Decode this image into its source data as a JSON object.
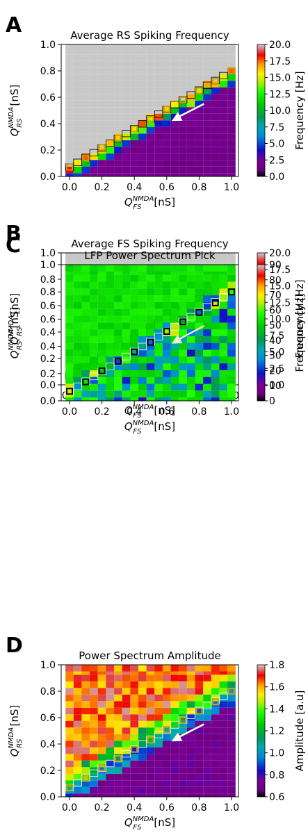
{
  "panels": [
    {
      "letter": "A",
      "title": "Average RS Spiking Frequency",
      "colorbar": {
        "label": "Frequency [Hz]",
        "ticks": [
          "20.0",
          "17.5",
          "15.0",
          "12.5",
          "10.0",
          "7.5",
          "5.0",
          "2.5",
          "0.0"
        ],
        "palette": "nipy"
      },
      "marker_color": "#c8a000",
      "arrow_color": "#ffffff"
    },
    {
      "letter": "B",
      "title": "Average FS Spiking Frequency",
      "colorbar": {
        "label": "Frequency [Hz]",
        "ticks": [
          "20.0",
          "17.5",
          "15.0",
          "12.5",
          "10.0",
          "7.5",
          "5.0",
          "2.5",
          "0.0"
        ],
        "palette": "nipy"
      },
      "marker_color": "#000000",
      "arrow_color": "#000000"
    },
    {
      "letter": "C",
      "title": "LFP Power Spectrum Pick",
      "colorbar": {
        "label": "Frequency [Hz]",
        "ticks": [
          "90",
          "80",
          "70",
          "60",
          "50",
          "40",
          "30",
          "20",
          "10",
          "0"
        ],
        "palette": "nipy"
      },
      "marker_color": "#000000",
      "arrow_color": "#f0f0c8"
    },
    {
      "letter": "D",
      "title": "Power Spectrum Amplitude",
      "colorbar": {
        "label": "Amplitude [a.u]",
        "ticks": [
          "1.8",
          "1.6",
          "1.4",
          "1.2",
          "1.0",
          "0.8",
          "0.6"
        ],
        "palette": "nipy"
      },
      "marker_color": "#c8a000",
      "arrow_color": "#ffffff"
    }
  ],
  "axes": {
    "xticks": [
      "0.0",
      "0.2",
      "0.4",
      "0.6",
      "0.8",
      "1.0"
    ],
    "yticks": [
      "1.0",
      "0.8",
      "0.6",
      "0.4",
      "0.2",
      "0.0"
    ],
    "xlabel": "Q_FS^NMDA [nS]",
    "ylabel": "Q_RS^NMDA [nS]"
  },
  "chart_data": [
    {
      "type": "heatmap",
      "title": "Average RS Spiking Frequency",
      "xlabel": "Q_FS^NMDA [nS]",
      "ylabel": "Q_RS^NMDA [nS]",
      "xlim": [
        0,
        1
      ],
      "ylim": [
        0,
        1
      ],
      "grid_step": 0.05,
      "colorbar_label": "Frequency [Hz]",
      "colorbar_range": [
        0,
        20
      ],
      "description": "Grey (no data) above the diagonal boundary; hot colors along boundary; purple/dark region below",
      "markers_x": [
        0.0,
        0.1,
        0.2,
        0.3,
        0.4,
        0.5,
        0.6,
        0.7,
        0.8,
        0.9,
        1.0
      ],
      "markers_y": [
        0.07,
        0.14,
        0.22,
        0.29,
        0.36,
        0.43,
        0.51,
        0.58,
        0.65,
        0.72,
        0.8
      ]
    },
    {
      "type": "heatmap",
      "title": "Average FS Spiking Frequency",
      "xlabel": "Q_FS^NMDA [nS]",
      "ylabel": "Q_RS^NMDA [nS]",
      "xlim": [
        0,
        1
      ],
      "ylim": [
        0,
        1
      ],
      "grid_step": 0.05,
      "colorbar_label": "Frequency [Hz]",
      "colorbar_range": [
        0,
        20
      ],
      "markers_x": [
        0.0,
        0.1,
        0.2,
        0.3,
        0.4,
        0.5,
        0.6,
        0.7,
        0.8,
        0.9,
        1.0
      ],
      "markers_y": [
        0.07,
        0.14,
        0.22,
        0.29,
        0.36,
        0.43,
        0.51,
        0.58,
        0.65,
        0.72,
        0.8
      ]
    },
    {
      "type": "heatmap",
      "title": "LFP Power Spectrum Pick",
      "xlabel": "Q_FS^NMDA [nS]",
      "ylabel": "Q_RS^NMDA [nS]",
      "xlim": [
        0,
        1
      ],
      "ylim": [
        0,
        1
      ],
      "grid_step": 0.05,
      "colorbar_label": "Frequency [Hz]",
      "colorbar_range": [
        0,
        90
      ],
      "markers_x": [
        0.0,
        0.1,
        0.2,
        0.3,
        0.4,
        0.5,
        0.6,
        0.7,
        0.8,
        0.9,
        1.0
      ],
      "markers_y": [
        0.07,
        0.14,
        0.22,
        0.29,
        0.36,
        0.43,
        0.51,
        0.58,
        0.65,
        0.72,
        0.8
      ]
    },
    {
      "type": "heatmap",
      "title": "Power Spectrum Amplitude",
      "xlabel": "Q_FS^NMDA [nS]",
      "ylabel": "Q_RS^NMDA [nS]",
      "xlim": [
        0,
        1
      ],
      "ylim": [
        0,
        1
      ],
      "grid_step": 0.05,
      "colorbar_label": "Amplitude [a.u]",
      "colorbar_range": [
        0.5,
        1.9
      ],
      "markers_x": [
        0.0,
        0.1,
        0.2,
        0.3,
        0.4,
        0.5,
        0.6,
        0.7,
        0.8,
        0.9,
        1.0
      ],
      "markers_y": [
        0.07,
        0.14,
        0.22,
        0.29,
        0.36,
        0.43,
        0.51,
        0.58,
        0.65,
        0.72,
        0.8
      ]
    }
  ]
}
